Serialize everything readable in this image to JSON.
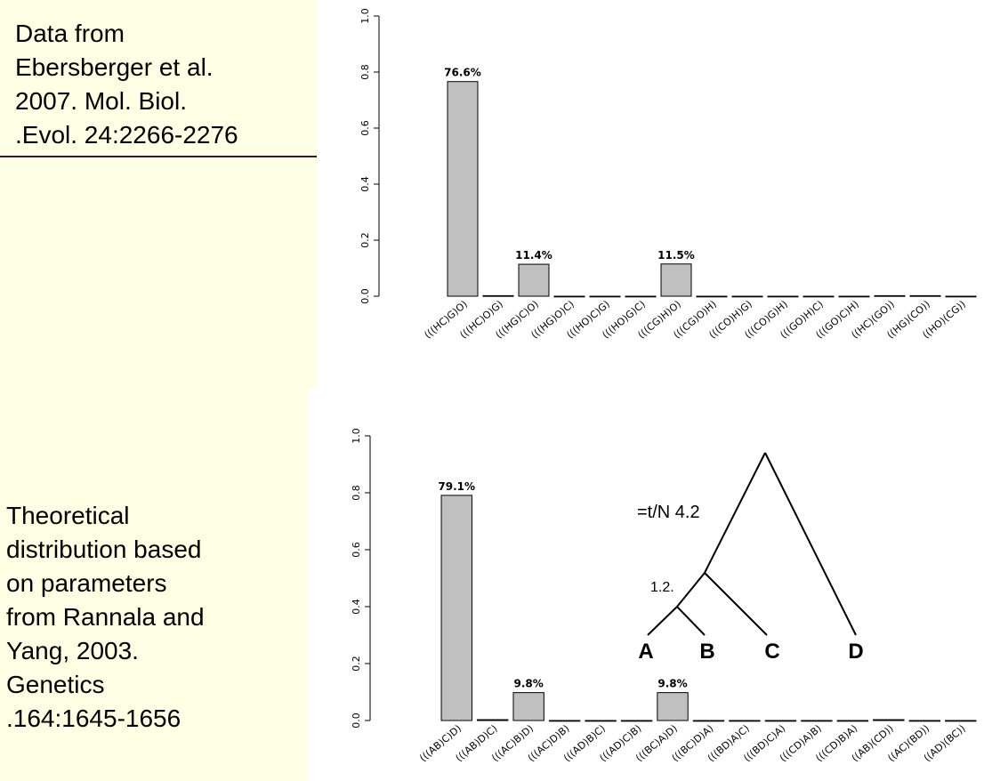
{
  "captions": {
    "top": [
      "Data from",
      "Ebersberger et al.",
      "2007. Mol. Biol.",
      ".Evol. 24:2266-2276"
    ],
    "bottom": [
      "Theoretical",
      "distribution based",
      "on parameters",
      "from Rannala and",
      "Yang, 2003.",
      "Genetics",
      ".164:1645-1656"
    ]
  },
  "colors": {
    "bar_fill": "#c0c0c0",
    "panel_bg": "#ffffe5",
    "divider": "#3b1236"
  },
  "chart_data": [
    {
      "type": "bar",
      "categories": [
        "(((HC)G)O)",
        "(((HC)O)G)",
        "(((HG)C)O)",
        "(((HG)O)C)",
        "(((HO)C)G)",
        "(((HO)G)C)",
        "(((CG)H)O)",
        "(((CG)O)H)",
        "(((CO)H)G)",
        "(((CO)G)H)",
        "(((GO)H)C)",
        "(((GO)C)H)",
        "((HC)(GO))",
        "((HG)(CO))",
        "((HO)(CG))"
      ],
      "values": [
        0.766,
        0.002,
        0.114,
        0,
        0,
        0,
        0.115,
        0,
        0,
        0,
        0,
        0,
        0.002,
        0.002,
        0
      ],
      "data_labels": [
        "76.6%",
        "",
        "11.4%",
        "",
        "",
        "",
        "11.5%",
        "",
        "",
        "",
        "",
        "",
        "",
        "",
        ""
      ],
      "yticks": [
        "0.0",
        "0.2",
        "0.4",
        "0.6",
        "0.8",
        "1.0"
      ],
      "ylim": [
        0,
        1
      ]
    },
    {
      "type": "bar",
      "categories": [
        "(((AB)C)D)",
        "(((AB)D)C)",
        "(((AC)B)D)",
        "(((AC)D)B)",
        "(((AD)B)C)",
        "(((AD)C)B)",
        "(((BC)A)D)",
        "(((BC)D)A)",
        "(((BD)A)C)",
        "(((BD)C)A)",
        "(((CD)A)B)",
        "(((CD)B)A)",
        "((AB)(CD))",
        "((AC)(BD))",
        "((AD)(BC))"
      ],
      "values": [
        0.791,
        0.003,
        0.098,
        0,
        0,
        0,
        0.098,
        0,
        0,
        0,
        0,
        0,
        0.003,
        0,
        0
      ],
      "data_labels": [
        "79.1%",
        "",
        "9.8%",
        "",
        "",
        "",
        "9.8%",
        "",
        "",
        "",
        "",
        "",
        "",
        "",
        ""
      ],
      "yticks": [
        "0.0",
        "0.2",
        "0.4",
        "0.6",
        "0.8",
        "1.0"
      ],
      "ylim": [
        0,
        1
      ]
    }
  ],
  "tree": {
    "leaves": [
      "A",
      "B",
      "C",
      "D"
    ],
    "param_root": "=t/N  4.2",
    "param_inner": "1.2."
  }
}
